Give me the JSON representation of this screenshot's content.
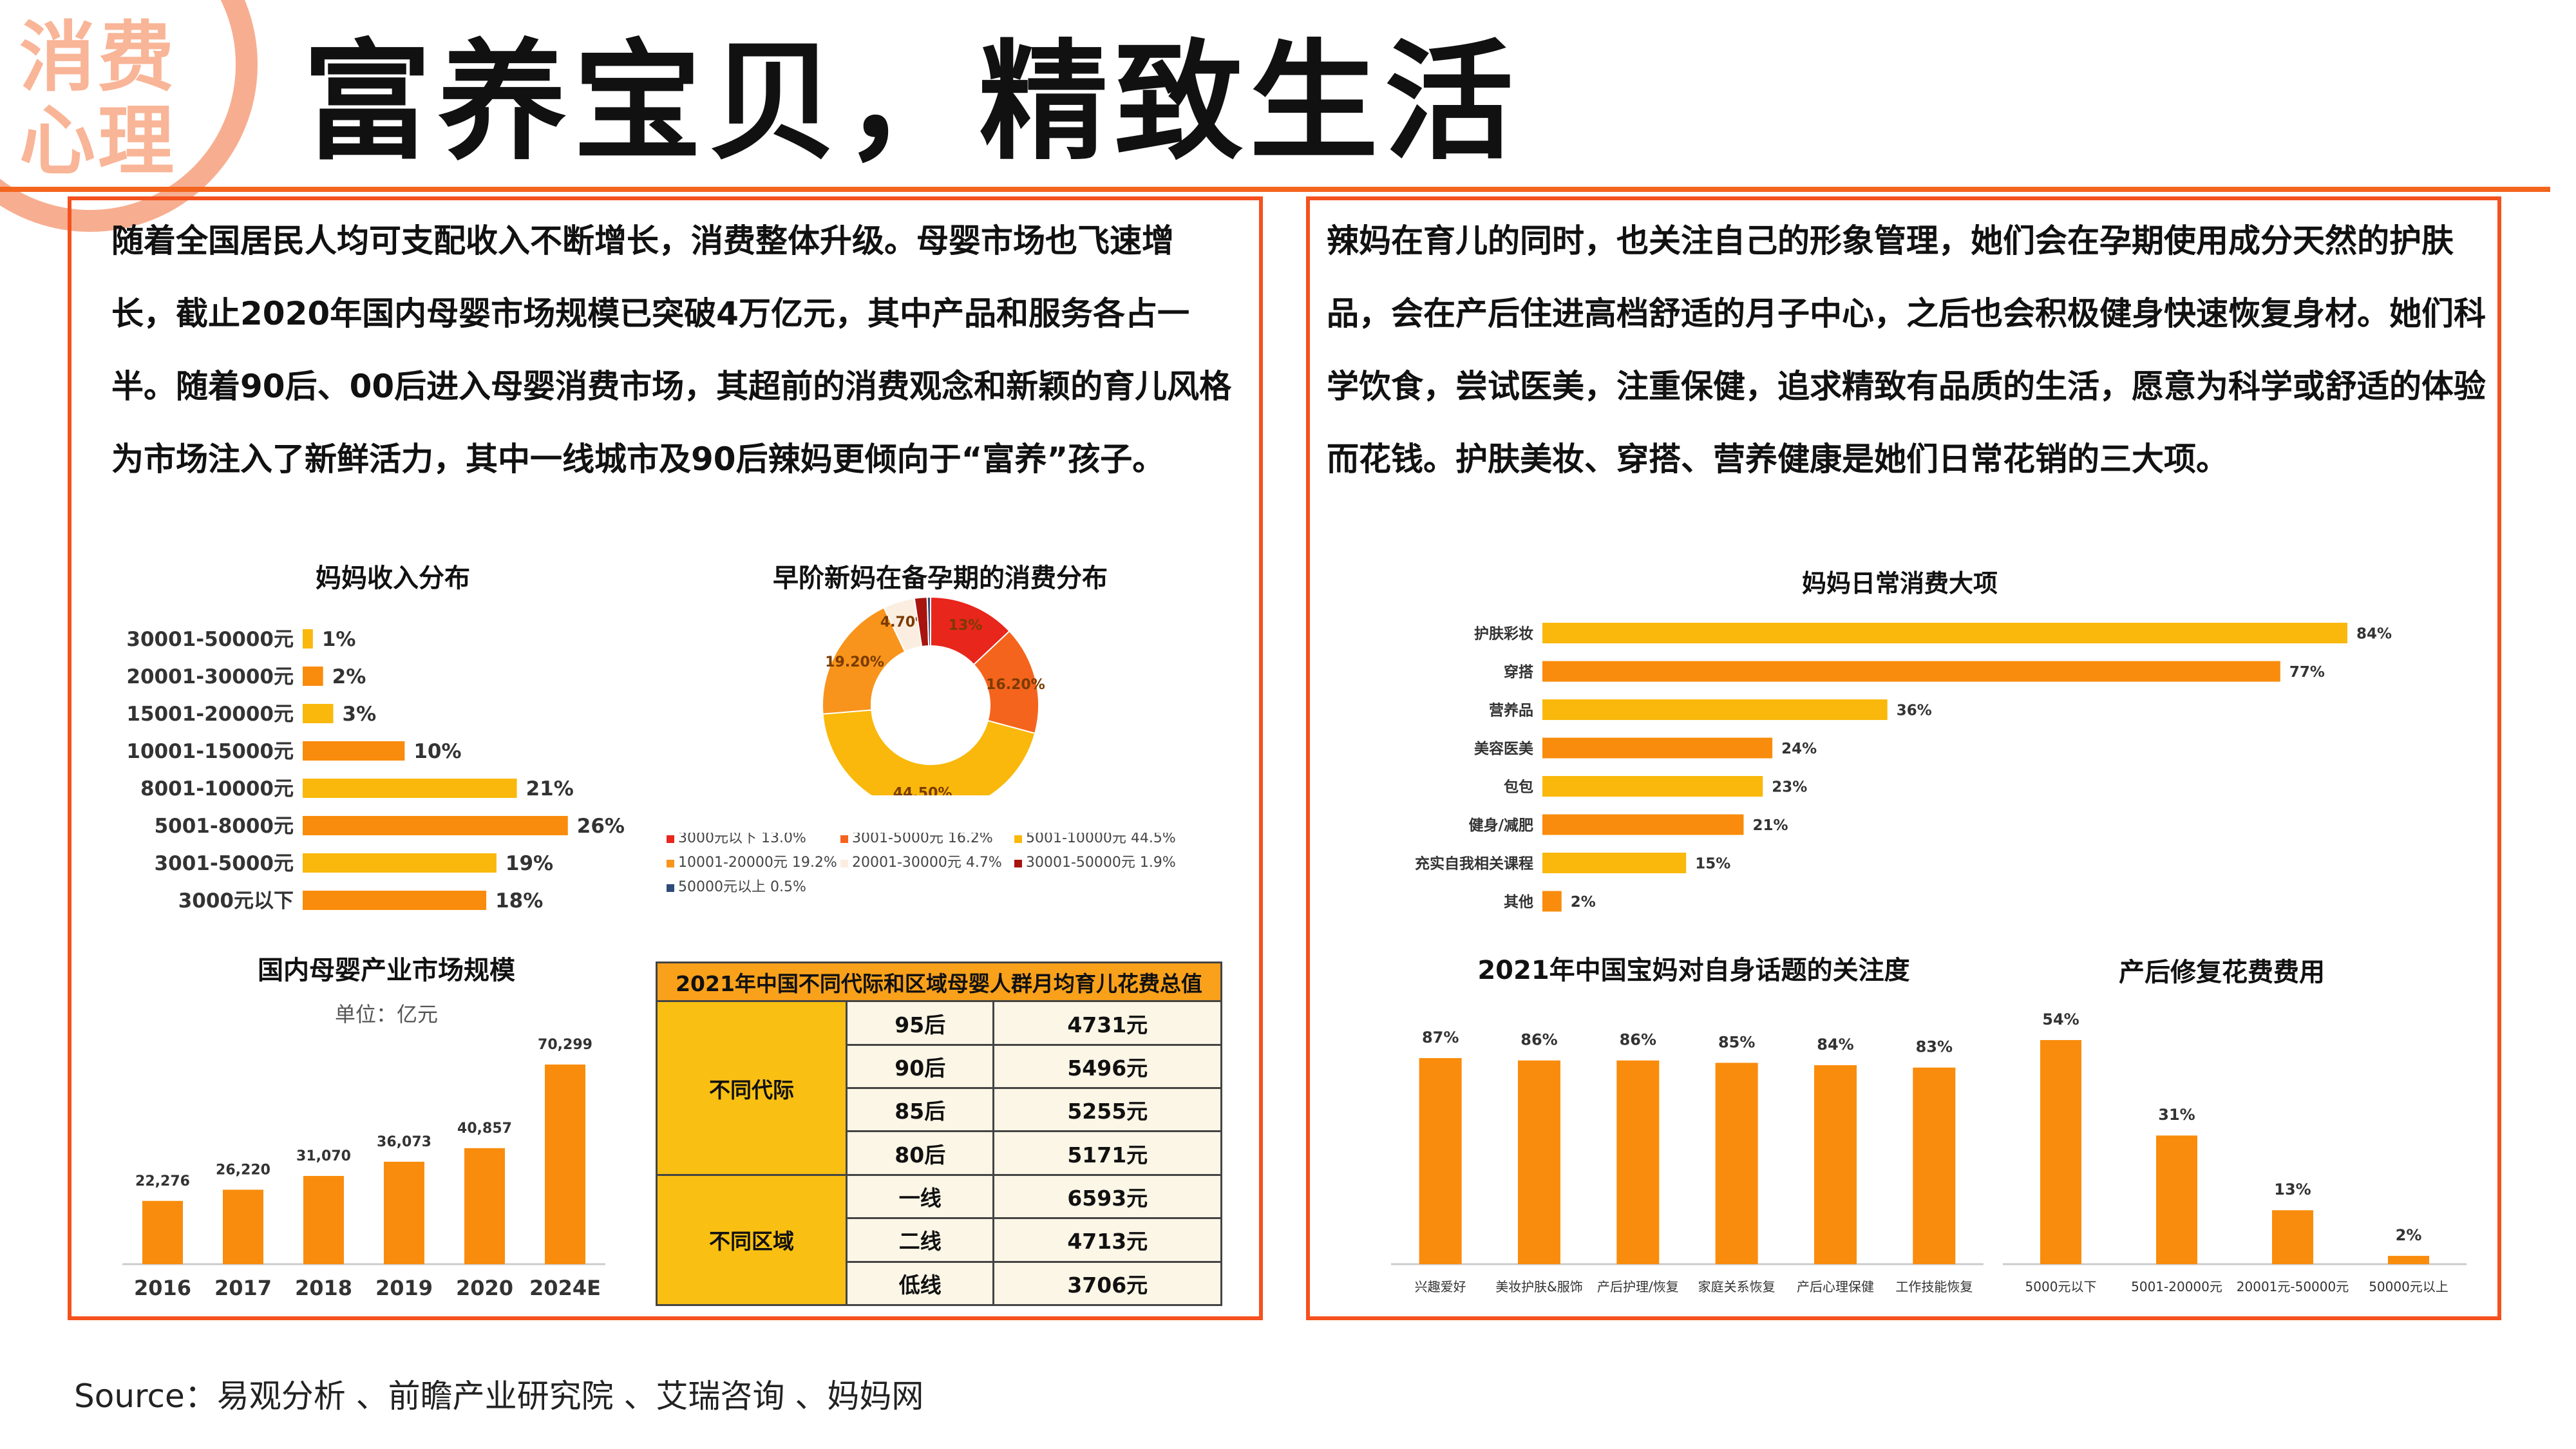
{
  "badge": {
    "line1": "消费",
    "line2": "心理"
  },
  "title": "富养宝贝，精致生活",
  "left_text": "随着全国居民人均可支配收入不断增长，消费整体升级。母婴市场也飞速增长，截止2020年国内母婴市场规模已突破4万亿元，其中产品和服务各占一半。随着90后、00后进入母婴消费市场，其超前的消费观念和新颖的育儿风格为市场注入了新鲜活力，其中一线城市及90后辣妈更倾向于“富养”孩子。",
  "right_text": "辣妈在育儿的同时，也关注自己的形象管理，她们会在孕期使用成分天然的护肤品，会在产后住进高档舒适的月子中心，之后也会积极健身快速恢复身材。她们科学饮食，尝试医美，注重保健，追求精致有品质的生活，愿意为科学或舒适的体验而花钱。护肤美妆、穿搭、营养健康是她们日常花销的三大项。",
  "source": "Source：易观分析 、前瞻产业研究院 、艾瑞咨询 、妈妈网",
  "colors": {
    "accent": "#f4511e",
    "orange": "#f98c0c",
    "yellow": "#f9b80b",
    "deep_orange": "#f86a0e"
  },
  "table": {
    "title": "2021年中国不同代际和区域母婴人群月均育儿花费总值",
    "groups": [
      {
        "label": "不同代际",
        "rows": [
          [
            "95后",
            "4731元"
          ],
          [
            "90后",
            "5496元"
          ],
          [
            "85后",
            "5255元"
          ],
          [
            "80后",
            "5171元"
          ]
        ]
      },
      {
        "label": "不同区域",
        "rows": [
          [
            "一线",
            "6593元"
          ],
          [
            "二线",
            "4713元"
          ],
          [
            "低线",
            "3706元"
          ]
        ]
      }
    ]
  },
  "chart_data": [
    {
      "type": "bar",
      "orientation": "horizontal",
      "title": "妈妈收入分布",
      "categories": [
        "30001-50000元",
        "20001-30000元",
        "15001-20000元",
        "10001-15000元",
        "8001-10000元",
        "5001-8000元",
        "3001-5000元",
        "3000元以下"
      ],
      "values": [
        1,
        2,
        3,
        10,
        21,
        26,
        19,
        18
      ],
      "labels": [
        "1%",
        "2%",
        "3%",
        "10%",
        "21%",
        "26%",
        "19%",
        "18%"
      ],
      "bar_colors": [
        "#f9b80b",
        "#f98c0c",
        "#f9b80b",
        "#f98c0c",
        "#f9b80b",
        "#f98c0c",
        "#f9b80b",
        "#f98c0c"
      ]
    },
    {
      "type": "pie",
      "donut": true,
      "title": "早阶新妈在备孕期的消费分布",
      "slices": [
        {
          "label": "3000元以下",
          "value": 13.0,
          "legend": "3000元以下 13.0%",
          "data_label": "13%",
          "color": "#e8261c"
        },
        {
          "label": "3001-5000元",
          "value": 16.2,
          "legend": "3001-5000元 16.2%",
          "data_label": "16.20%",
          "color": "#f5641c"
        },
        {
          "label": "5001-10000元",
          "value": 44.5,
          "legend": "5001-10000元 44.5%",
          "data_label": "44.50%",
          "color": "#f9b80b"
        },
        {
          "label": "10001-20000元",
          "value": 19.2,
          "legend": "10001-20000元 19.2%",
          "data_label": "19.20%",
          "color": "#f8941c"
        },
        {
          "label": "20001-30000元",
          "value": 4.7,
          "legend": "20001-30000元 4.7%",
          "data_label": "4.70%",
          "color": "#fbeee0"
        },
        {
          "label": "30001-50000元",
          "value": 1.9,
          "legend": "30001-50000元 1.9%",
          "data_label": "",
          "color": "#a8140e"
        },
        {
          "label": "50000元以上",
          "value": 0.5,
          "legend": "50000元以上 0.5%",
          "data_label": "",
          "color": "#2f4b78"
        }
      ]
    },
    {
      "type": "bar",
      "title": "国内母婴产业市场规模",
      "subtitle": "单位：亿元",
      "categories": [
        "2016",
        "2017",
        "2018",
        "2019",
        "2020",
        "2024E"
      ],
      "values": [
        22276,
        26220,
        31070,
        36073,
        40857,
        70299
      ],
      "labels": [
        "22,276",
        "26,220",
        "31,070",
        "36,073",
        "40,857",
        "70,299"
      ],
      "ylim": [
        0,
        75000
      ],
      "color": "#f98c0c"
    },
    {
      "type": "bar",
      "orientation": "horizontal",
      "title": "妈妈日常消费大项",
      "categories": [
        "护肤彩妆",
        "穿搭",
        "营养品",
        "美容医美",
        "包包",
        "健身/减肥",
        "充实自我相关课程",
        "其他"
      ],
      "values": [
        84,
        77,
        36,
        24,
        23,
        21,
        15,
        2
      ],
      "labels": [
        "84%",
        "77%",
        "36%",
        "24%",
        "23%",
        "21%",
        "15%",
        "2%"
      ],
      "bar_colors": [
        "#f9b80b",
        "#f98c0c",
        "#f9b80b",
        "#f98c0c",
        "#f9b80b",
        "#f98c0c",
        "#f9b80b",
        "#f98c0c"
      ]
    },
    {
      "type": "bar",
      "title": "2021年中国宝妈对自身话题的关注度",
      "categories": [
        "兴趣爱好",
        "美妆护肤&服饰",
        "产后护理/恢复",
        "家庭关系恢复",
        "产后心理保健",
        "工作技能恢复"
      ],
      "values": [
        87,
        86,
        86,
        85,
        84,
        83
      ],
      "labels": [
        "87%",
        "86%",
        "86%",
        "85%",
        "84%",
        "83%"
      ],
      "color": "#f98c0c"
    },
    {
      "type": "bar",
      "title": "产后修复花费费用",
      "categories": [
        "5000元以下",
        "5001-20000元",
        "20001元-50000元",
        "50000元以上"
      ],
      "values": [
        54,
        31,
        13,
        2
      ],
      "labels": [
        "54%",
        "31%",
        "13%",
        "2%"
      ],
      "color": "#f98c0c"
    }
  ]
}
